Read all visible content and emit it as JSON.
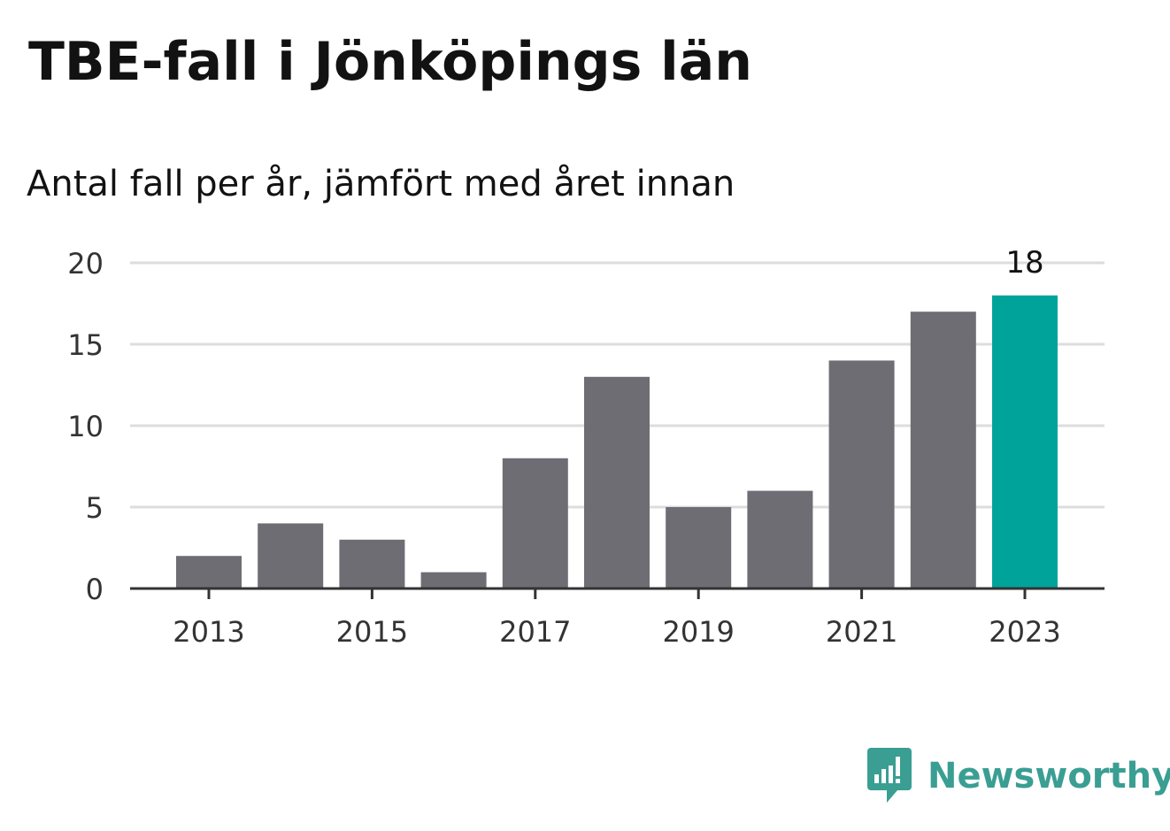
{
  "header": {
    "title": "TBE-fall i Jönköpings län",
    "subtitle": "Antal fall per år, jämfört med året innan"
  },
  "chart_data": {
    "type": "bar",
    "categories": [
      "2013",
      "2014",
      "2015",
      "2016",
      "2017",
      "2018",
      "2019",
      "2020",
      "2021",
      "2022",
      "2023"
    ],
    "values": [
      2,
      4,
      3,
      1,
      8,
      13,
      5,
      6,
      14,
      17,
      18
    ],
    "x_tick_labels": [
      "2013",
      "2015",
      "2017",
      "2019",
      "2021",
      "2023"
    ],
    "y_ticks": [
      0,
      5,
      10,
      15,
      20
    ],
    "ylim": [
      0,
      20
    ],
    "grid": true,
    "highlight_index": 10,
    "highlight_label": "18",
    "colors": {
      "bar": "#6e6d74",
      "highlight": "#00a39a",
      "grid": "#dddddd",
      "axis": "#333333",
      "tick_text": "#333333"
    }
  },
  "branding": {
    "logo_text": "Newsworthy",
    "logo_icon": "bar-chart-speech-bubble-icon",
    "logo_color": "#3a9e93"
  }
}
